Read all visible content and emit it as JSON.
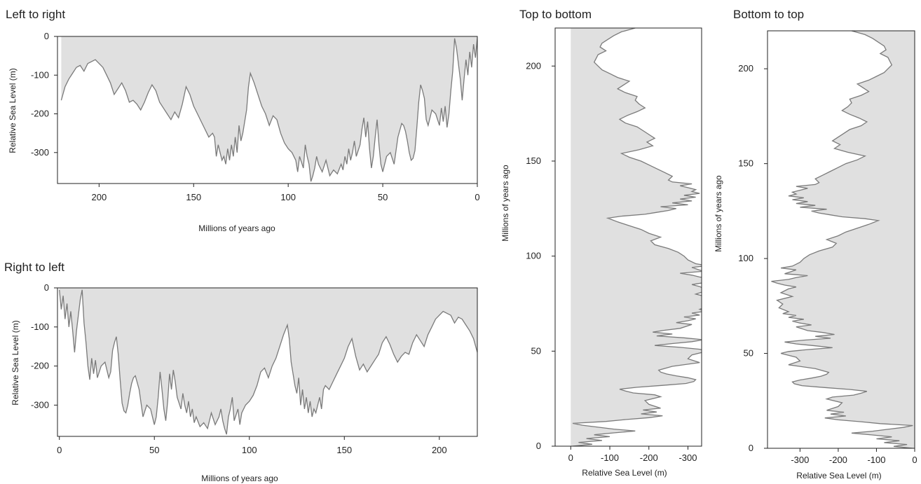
{
  "figure": {
    "panels": [
      "Left to right",
      "Right to left",
      "Top to bottom",
      "Bottom to top"
    ]
  },
  "colors": {
    "fill": "#e0e0e0",
    "line": "#7a7a7a",
    "axis": "#222222"
  },
  "chart_data": [
    {
      "type": "area",
      "title": "Left to right",
      "xlabel": "Millions of years ago",
      "ylabel": "Relative Sea Level (m)",
      "x_direction": "decreasing",
      "xlim": [
        222,
        0
      ],
      "ylim": [
        -380,
        0
      ],
      "xticks": [
        200,
        150,
        100,
        50,
        0
      ],
      "yticks": [
        0,
        -100,
        -200,
        -300
      ],
      "grid": false,
      "legend": "none"
    },
    {
      "type": "area",
      "title": "Right to left",
      "xlabel": "Millions of years ago",
      "ylabel": "Relative Sea Level (m)",
      "x_direction": "increasing",
      "xlim": [
        -1,
        220
      ],
      "ylim": [
        -380,
        0
      ],
      "xticks": [
        0,
        50,
        100,
        150,
        200
      ],
      "yticks": [
        0,
        -100,
        -200,
        -300
      ],
      "grid": false,
      "legend": "none"
    },
    {
      "type": "area",
      "title": "Top to bottom",
      "xlabel": "Relative Sea Level (m)",
      "ylabel": "Millions of years ago",
      "orientation": "vertical",
      "x_direction": "decreasing",
      "xlim": [
        40,
        -335
      ],
      "ylim": [
        0,
        220
      ],
      "xticks": [
        0,
        -100,
        -200,
        -300
      ],
      "yticks": [
        0,
        50,
        100,
        150,
        200
      ],
      "grid": false,
      "legend": "none"
    },
    {
      "type": "area",
      "title": "Bottom to top",
      "xlabel": "Relative Sea Level (m)",
      "ylabel": "Millions of years ago",
      "orientation": "vertical",
      "x_direction": "increasing",
      "xlim": [
        -385,
        0
      ],
      "ylim": [
        0,
        220
      ],
      "xticks": [
        -300,
        -200,
        -100,
        0
      ],
      "yticks": [
        0,
        50,
        100,
        150,
        200
      ],
      "grid": false,
      "legend": "none"
    }
  ],
  "sea_level_series": {
    "x": [
      0,
      1,
      2,
      3,
      4,
      5,
      6,
      7,
      8,
      9,
      10,
      11,
      12,
      13,
      14,
      15,
      16,
      17,
      18,
      19,
      20,
      22,
      24,
      26,
      27,
      28,
      29,
      30,
      31,
      32,
      33,
      34,
      35,
      36,
      37,
      38,
      39,
      40,
      42,
      44,
      46,
      48,
      50,
      51,
      52,
      53,
      54,
      55,
      56,
      57,
      58,
      59,
      60,
      61,
      62,
      64,
      65,
      66,
      67,
      68,
      69,
      70,
      71,
      72,
      74,
      76,
      78,
      80,
      82,
      84,
      85,
      86,
      87,
      88,
      89,
      90,
      91,
      92,
      93,
      94,
      95,
      96,
      98,
      100,
      102,
      104,
      106,
      108,
      110,
      112,
      114,
      116,
      118,
      120,
      121,
      122,
      123,
      124,
      125,
      126,
      127,
      128,
      129,
      130,
      131,
      132,
      133,
      134,
      135,
      136,
      137,
      138,
      139,
      140,
      142,
      144,
      146,
      148,
      150,
      152,
      154,
      156,
      158,
      160,
      162,
      164,
      166,
      168,
      170,
      172,
      174,
      176,
      178,
      180,
      182,
      184,
      186,
      188,
      190,
      192,
      194,
      196,
      198,
      200,
      202,
      204,
      206,
      208,
      210,
      212,
      214,
      216,
      218,
      220
    ],
    "y": [
      -5,
      -55,
      -20,
      -80,
      -40,
      -100,
      -60,
      -110,
      -165,
      -110,
      -70,
      -30,
      -5,
      -90,
      -140,
      -200,
      -235,
      -180,
      -220,
      -185,
      -230,
      -200,
      -190,
      -230,
      -215,
      -160,
      -140,
      -125,
      -170,
      -235,
      -295,
      -315,
      -320,
      -300,
      -270,
      -245,
      -230,
      -225,
      -260,
      -330,
      -300,
      -310,
      -350,
      -330,
      -280,
      -215,
      -260,
      -310,
      -340,
      -290,
      -220,
      -260,
      -210,
      -240,
      -280,
      -310,
      -270,
      -300,
      -320,
      -290,
      -330,
      -310,
      -345,
      -330,
      -355,
      -345,
      -360,
      -320,
      -350,
      -330,
      -310,
      -340,
      -360,
      -375,
      -330,
      -310,
      -280,
      -340,
      -325,
      -310,
      -350,
      -320,
      -300,
      -290,
      -275,
      -250,
      -215,
      -205,
      -230,
      -200,
      -180,
      -150,
      -120,
      -95,
      -130,
      -190,
      -220,
      -250,
      -270,
      -230,
      -300,
      -260,
      -310,
      -280,
      -320,
      -290,
      -330,
      -310,
      -320,
      -300,
      -280,
      -310,
      -260,
      -250,
      -260,
      -240,
      -220,
      -200,
      -180,
      -150,
      -130,
      -175,
      -210,
      -195,
      -215,
      -200,
      -185,
      -170,
      -140,
      -125,
      -145,
      -170,
      -190,
      -175,
      -165,
      -170,
      -140,
      -120,
      -135,
      -150,
      -120,
      -100,
      -80,
      -70,
      -60,
      -65,
      -70,
      -90,
      -75,
      -80,
      -95,
      -110,
      -130,
      -165
    ]
  }
}
